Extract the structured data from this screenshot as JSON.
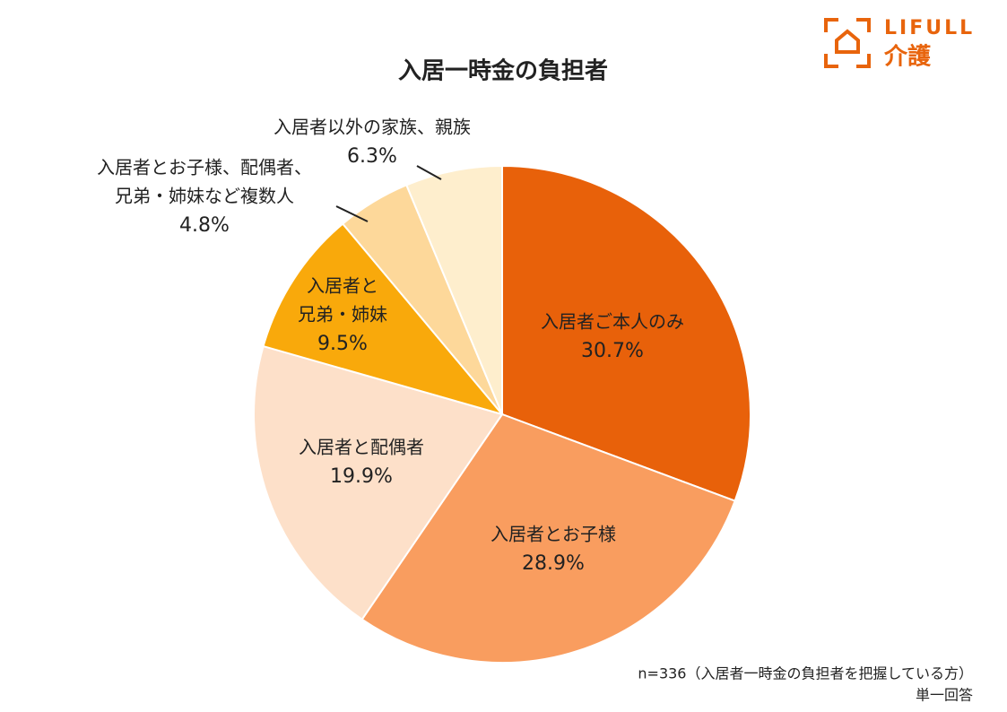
{
  "chart_data": {
    "type": "pie",
    "title": "入居一時金の負担者",
    "categories": [
      [
        "入居者ご本人のみ"
      ],
      [
        "入居者とお子様"
      ],
      [
        "入居者と配偶者"
      ],
      [
        "入居者と",
        "兄弟・姉妹"
      ],
      [
        "入居者とお子様、配偶者、",
        "兄弟・姉妹など複数人"
      ],
      [
        "入居者以外の家族、親族"
      ]
    ],
    "values": [
      30.7,
      28.9,
      19.9,
      9.5,
      4.8,
      6.3
    ],
    "value_labels": [
      "30.7%",
      "28.9%",
      "19.9%",
      "9.5%",
      "4.8%",
      "6.3%"
    ],
    "colors": [
      "#e8610a",
      "#f99d5f",
      "#fde0c9",
      "#f9a90b",
      "#fdd89a",
      "#feeecd"
    ],
    "notes": [
      "n=336（入居者一時金の負担者を把握している方）",
      "単一回答"
    ]
  },
  "logo": {
    "brand": "LIFULL",
    "service": "介護"
  }
}
